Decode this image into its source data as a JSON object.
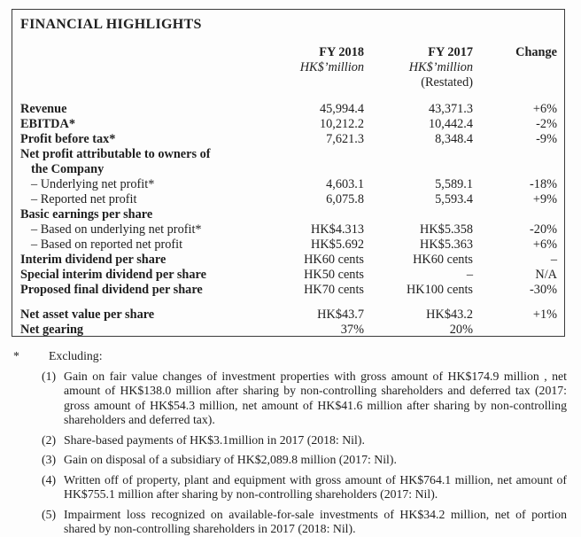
{
  "panel": {
    "title": "FINANCIAL HIGHLIGHTS",
    "columns": {
      "fy2018": {
        "title": "FY 2018",
        "unit": "HK$’million"
      },
      "fy2017": {
        "title": "FY 2017",
        "unit": "HK$’million",
        "note": "(Restated)"
      },
      "change": {
        "title": "Change"
      }
    },
    "rows": [
      {
        "label": "Revenue",
        "bold": true,
        "indent": 0,
        "fy2018": "45,994.4",
        "fy2017": "43,371.3",
        "change": "+6%"
      },
      {
        "label": "EBITDA*",
        "bold": true,
        "indent": 0,
        "fy2018": "10,212.2",
        "fy2017": "10,442.4",
        "change": "-2%"
      },
      {
        "label": "Profit before tax*",
        "bold": true,
        "indent": 0,
        "fy2018": "7,621.3",
        "fy2017": "8,348.4",
        "change": "-9%"
      },
      {
        "label": "Net profit attributable to owners of",
        "bold": true,
        "indent": 0,
        "fy2018": "",
        "fy2017": "",
        "change": ""
      },
      {
        "label": "the Company",
        "bold": true,
        "indent": 1,
        "fy2018": "",
        "fy2017": "",
        "change": ""
      },
      {
        "label": "– Underlying net profit*",
        "bold": false,
        "indent": 1,
        "fy2018": "4,603.1",
        "fy2017": "5,589.1",
        "change": "-18%"
      },
      {
        "label": "– Reported net profit",
        "bold": false,
        "indent": 1,
        "fy2018": "6,075.8",
        "fy2017": "5,593.4",
        "change": "+9%"
      },
      {
        "label": "Basic earnings per share",
        "bold": true,
        "indent": 0,
        "fy2018": "",
        "fy2017": "",
        "change": ""
      },
      {
        "label": "– Based on underlying net profit*",
        "bold": false,
        "indent": 1,
        "fy2018": "HK$4.313",
        "fy2017": "HK$5.358",
        "change": "-20%"
      },
      {
        "label": "– Based on reported net profit",
        "bold": false,
        "indent": 1,
        "fy2018": "HK$5.692",
        "fy2017": "HK$5.363",
        "change": "+6%"
      },
      {
        "label": "Interim dividend per share",
        "bold": true,
        "indent": 0,
        "fy2018": "HK60 cents",
        "fy2017": "HK60 cents",
        "change": "–"
      },
      {
        "label": "Special interim dividend per share",
        "bold": true,
        "indent": 0,
        "fy2018": "HK50 cents",
        "fy2017": "–",
        "change": "N/A"
      },
      {
        "label": "Proposed final dividend per share",
        "bold": true,
        "indent": 0,
        "fy2018": "HK70 cents",
        "fy2017": "HK100 cents",
        "change": "-30%"
      },
      {
        "spacer": true
      },
      {
        "label": "Net asset value per share",
        "bold": true,
        "indent": 0,
        "fy2018": "HK$43.7",
        "fy2017": "HK$43.2",
        "change": "+1%"
      },
      {
        "label": "Net gearing",
        "bold": true,
        "indent": 0,
        "fy2018": "37%",
        "fy2017": "20%",
        "change": ""
      }
    ]
  },
  "footnotes": {
    "marker": "*",
    "intro": "Excluding:",
    "items": [
      {
        "num": "(1)",
        "text": "Gain on fair value changes of investment properties with gross amount of HK$174.9 million , net amount of HK$138.0 million after sharing by non-controlling shareholders and deferred tax (2017: gross amount of HK$54.3 million, net amount of HK$41.6 million after sharing by non-controlling shareholders and deferred tax)."
      },
      {
        "num": "(2)",
        "text": "Share-based payments of HK$3.1million in 2017 (2018: Nil)."
      },
      {
        "num": "(3)",
        "text": "Gain on disposal of a subsidiary of HK$2,089.8 million (2017: Nil)."
      },
      {
        "num": "(4)",
        "text": "Written off of property, plant and equipment with gross amount of HK$764.1 million, net amount of HK$755.1 million after sharing by non-controlling shareholders (2017: Nil)."
      },
      {
        "num": "(5)",
        "text": "Impairment loss recognized on available-for-sale investments of HK$34.2 million, net of portion shared by non-controlling shareholders in 2017 (2018: Nil)."
      }
    ]
  },
  "colors": {
    "text": "#1f1f1f",
    "border": "#3c3c3c",
    "background": "#fdfdfd"
  }
}
